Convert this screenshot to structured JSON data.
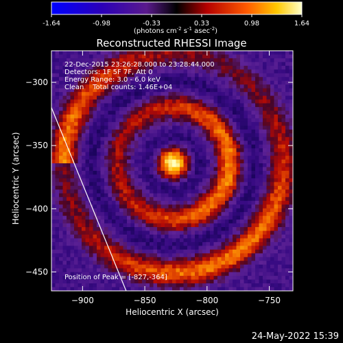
{
  "colorbar": {
    "ticks": [
      "-1.64",
      "-0.98",
      "-0.33",
      "0.33",
      "0.98",
      "1.64"
    ],
    "units_main": "(photons cm",
    "units_exp1": "-2",
    "units_mid1": " s",
    "units_exp2": "-1",
    "units_mid2": " asec",
    "units_exp3": "-2",
    "units_end": ")"
  },
  "image_info": {
    "time_range": "22-Dec-2015 23:26:28.000 to 23:28:44.000",
    "detectors": "Detectors: 1F 5F 7F, Att 0",
    "energy_range": "Energy Range: 3.0 - 6.0 keV",
    "clean_counts": "Clean    Total counts: 1.46E+04",
    "peak_position": "Position of Peak = [-827,-364]"
  },
  "footer": {
    "timestamp": "24-May-2022 15:39"
  },
  "colors": {
    "background": "#000000",
    "text": "#ffffff"
  },
  "chart_data": {
    "type": "heatmap",
    "title": "Reconstructed RHESSI Image",
    "xlabel": "Heliocentric X (arcsec)",
    "ylabel": "Heliocentric Y (arcsec)",
    "xlim": [
      -925,
      -731
    ],
    "ylim": [
      -465,
      -275
    ],
    "x_ticks": [
      -900,
      -850,
      -800,
      -750
    ],
    "y_ticks": [
      -300,
      -350,
      -400,
      -450
    ],
    "x_tick_labels": [
      "−900",
      "−850",
      "−800",
      "−750"
    ],
    "y_tick_labels": [
      "−300",
      "−350",
      "−400",
      "−450"
    ],
    "colorbar_range": [
      -1.64,
      1.64
    ],
    "peak_xy": [
      -827,
      -364
    ],
    "limb_line": [
      [
        -925,
        -320
      ],
      [
        -865,
        -465
      ]
    ]
  }
}
